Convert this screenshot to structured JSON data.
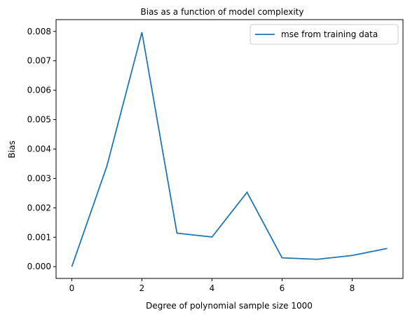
{
  "chart_data": {
    "type": "line",
    "title": "Bias as a function of model complexity",
    "xlabel": "Degree of polynomial sample size 1000",
    "ylabel": "Bias",
    "xlim": [
      -0.45,
      9.45
    ],
    "ylim": [
      -0.0004,
      0.0084
    ],
    "xticks": [
      0,
      2,
      4,
      6,
      8
    ],
    "xtick_labels": [
      "0",
      "2",
      "4",
      "6",
      "8"
    ],
    "yticks": [
      0.0,
      0.001,
      0.002,
      0.003,
      0.004,
      0.005,
      0.006,
      0.007,
      0.008
    ],
    "ytick_labels": [
      "0.000",
      "0.001",
      "0.002",
      "0.003",
      "0.004",
      "0.005",
      "0.006",
      "0.007",
      "0.008"
    ],
    "grid": false,
    "legend_position": "top-right",
    "series": [
      {
        "name": "mse from training data",
        "color": "#1f77b4",
        "x": [
          0,
          1,
          2,
          3,
          4,
          5,
          6,
          7,
          8,
          9
        ],
        "y": [
          0.0,
          0.00342,
          0.00797,
          0.00114,
          0.00101,
          0.00253,
          0.0003,
          0.00025,
          0.00038,
          0.00062
        ]
      }
    ]
  }
}
